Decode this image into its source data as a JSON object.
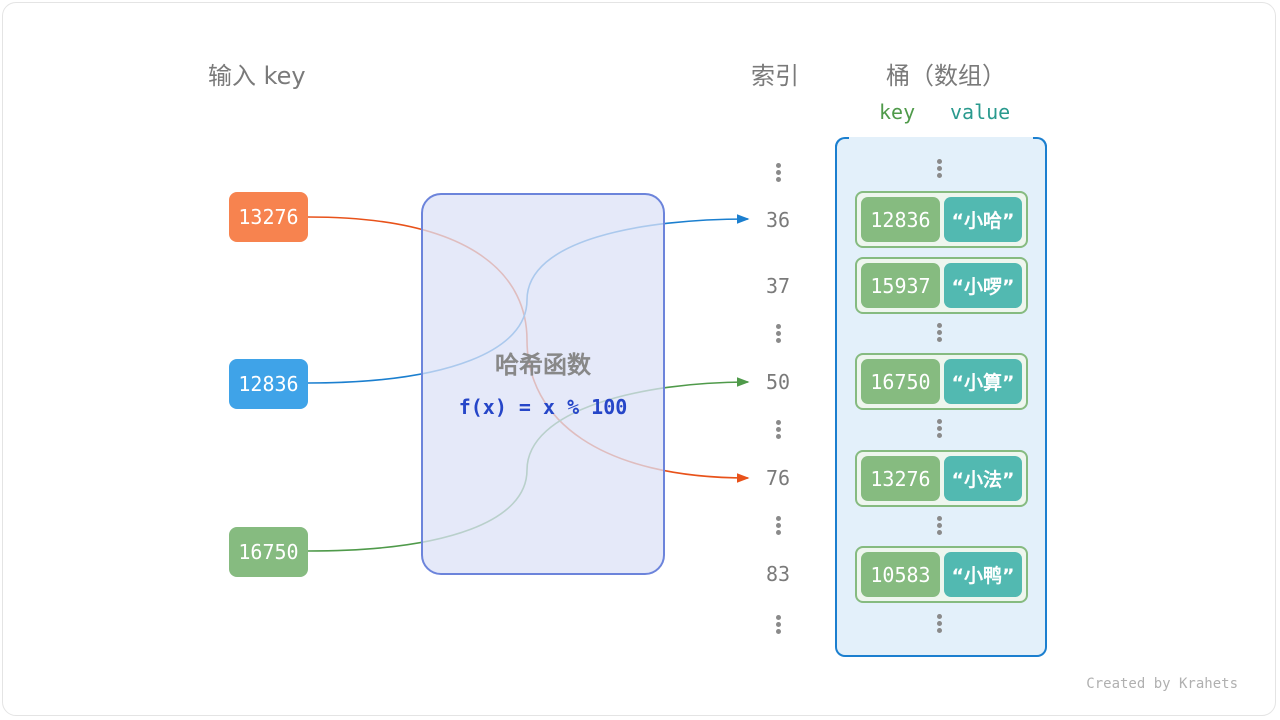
{
  "headers": {
    "input": "输入 key",
    "index": "索引",
    "bucket": "桶（数组）",
    "key": "key",
    "value": "value"
  },
  "inputs": [
    {
      "key": "13276",
      "color": "#f7834f"
    },
    {
      "key": "12836",
      "color": "#3fa3e8"
    },
    {
      "key": "16750",
      "color": "#86bb80"
    }
  ],
  "hash": {
    "title": "哈希函数",
    "formula": "f(x) = x % 100"
  },
  "indices": [
    "36",
    "37",
    "50",
    "76",
    "83"
  ],
  "buckets": [
    {
      "key": "12836",
      "value": "“小哈”"
    },
    {
      "key": "15937",
      "value": "“小啰”"
    },
    {
      "key": "16750",
      "value": "“小算”"
    },
    {
      "key": "13276",
      "value": "“小法”"
    },
    {
      "key": "10583",
      "value": "“小鸭”"
    }
  ],
  "colors": {
    "orange": "#e8521a",
    "blue": "#1b7fcf",
    "green": "#4f9a4a",
    "bucket_border": "#1b7fcf",
    "hash_border": "#6c84db"
  },
  "credit": "Created by Krahets"
}
